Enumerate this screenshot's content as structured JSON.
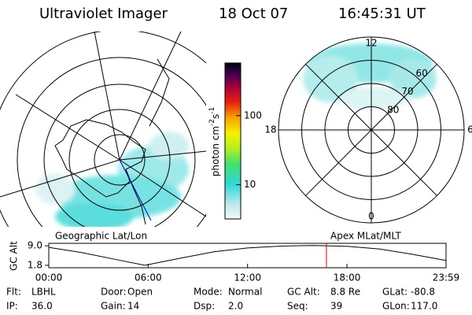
{
  "header": {
    "title": "Ultraviolet Imager",
    "date": "18 Oct 07",
    "time": "16:45:31 UT"
  },
  "colorbar": {
    "label": [
      "photon cm",
      "-2",
      "s",
      "-1"
    ],
    "range": [
      3.2,
      577
    ],
    "ticks": [
      10,
      100
    ],
    "log": true
  },
  "mlt_plot": {
    "mlt_ticks": [
      12,
      18,
      6,
      0
    ],
    "lat_ticks": [
      60,
      70,
      80
    ],
    "lat_min": 50
  },
  "altitude_panel": {
    "left_title": "Geographic Lat/Lon",
    "right_title": "Apex MLat/MLT",
    "ylabel": "GC Alt",
    "ylim": [
      0.9,
      9.9
    ],
    "yticks": [
      {
        "value": 9,
        "label": "9.0"
      },
      1.8
    ],
    "xlim": [
      0,
      23.98
    ],
    "xticks": [
      {
        "value": 0,
        "label": "00:00"
      },
      {
        "value": 6,
        "label": "06:00"
      },
      {
        "value": 12,
        "label": "12:00"
      },
      {
        "value": 18,
        "label": "18:00"
      },
      {
        "value": 23.98,
        "label": "23:59"
      }
    ],
    "x": [
      0,
      2,
      4,
      5.8,
      8,
      10,
      12,
      14,
      16,
      18,
      20,
      22,
      23.98
    ],
    "values": [
      8.4,
      6.5,
      4.0,
      1.8,
      4.5,
      6.8,
      8.2,
      8.9,
      9.1,
      8.8,
      7.8,
      5.8,
      3.6
    ],
    "current_time": 16.76
  },
  "info": [
    {
      "label": "Flt:",
      "value": "LBHL"
    },
    {
      "label": "IP:",
      "value": "36.0"
    },
    {
      "label": "Door:",
      "value": "Open"
    },
    {
      "label": "Gain:",
      "value": "14"
    },
    {
      "label": "Mode:",
      "value": "Normal"
    },
    {
      "label": "Dsp:",
      "value": "2.0"
    },
    {
      "label": "GC Alt:",
      "value": "8.8 Re"
    },
    {
      "label": "Seq:",
      "value": "39"
    },
    {
      "label": "GLat:",
      "value": "-80.8"
    },
    {
      "label": "GLon:",
      "value": "117.0"
    }
  ]
}
